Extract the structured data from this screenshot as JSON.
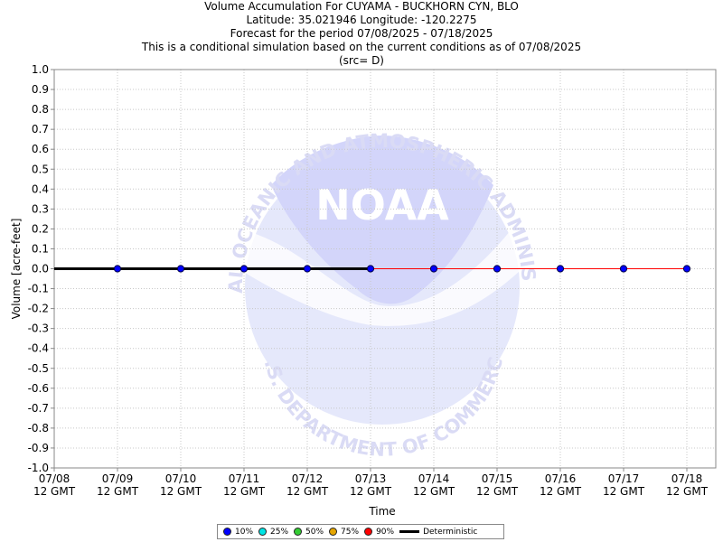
{
  "title_lines": [
    "Volume Accumulation For CUYAMA - BUCKHORN CYN, BLO",
    "Latitude: 35.021946 Longitude: -120.2275",
    "Forecast for the period 07/08/2025 - 07/18/2025",
    "This is a conditional simulation based on the current conditions as of 07/08/2025",
    "(src= D)"
  ],
  "watermark": {
    "logo_text": "NOAA",
    "ring_text_top": "NATIONAL OCEANIC AND ATMOSPHERIC ADMINISTRATION",
    "ring_text_bottom": "U.S. DEPARTMENT OF COMMERCE"
  },
  "chart_data": {
    "type": "line",
    "xlabel": "Time",
    "ylabel": "Volume [acre-feet]",
    "ylim": [
      -1.0,
      1.0
    ],
    "yticks": [
      "1.0",
      "0.9",
      "0.8",
      "0.7",
      "0.6",
      "0.5",
      "0.4",
      "0.3",
      "0.2",
      "0.1",
      "0.0",
      "-0.1",
      "-0.2",
      "-0.3",
      "-0.4",
      "-0.5",
      "-0.6",
      "-0.7",
      "-0.8",
      "-0.9",
      "-1.0"
    ],
    "x_ticks": [
      {
        "date": "07/08",
        "time": "12 GMT"
      },
      {
        "date": "07/09",
        "time": "12 GMT"
      },
      {
        "date": "07/10",
        "time": "12 GMT"
      },
      {
        "date": "07/11",
        "time": "12 GMT"
      },
      {
        "date": "07/12",
        "time": "12 GMT"
      },
      {
        "date": "07/13",
        "time": "12 GMT"
      },
      {
        "date": "07/14",
        "time": "12 GMT"
      },
      {
        "date": "07/15",
        "time": "12 GMT"
      },
      {
        "date": "07/16",
        "time": "12 GMT"
      },
      {
        "date": "07/17",
        "time": "12 GMT"
      },
      {
        "date": "07/18",
        "time": "12 GMT"
      }
    ],
    "grid": true,
    "series": [
      {
        "name": "10%",
        "color": "#0000ff",
        "marker": "circle",
        "x": [
          "07/09",
          "07/10",
          "07/11",
          "07/12",
          "07/13",
          "07/14",
          "07/15",
          "07/16",
          "07/17",
          "07/18"
        ],
        "values": [
          0,
          0,
          0,
          0,
          0,
          0,
          0,
          0,
          0,
          0
        ]
      },
      {
        "name": "25%",
        "color": "#00e5e5",
        "marker": "circle",
        "values": []
      },
      {
        "name": "50%",
        "color": "#33cc33",
        "marker": "circle",
        "values": []
      },
      {
        "name": "75%",
        "color": "#e5a500",
        "marker": "circle",
        "values": []
      },
      {
        "name": "90%",
        "color": "#ff0000",
        "marker": "circle",
        "x": [
          "07/13",
          "07/14",
          "07/15",
          "07/16",
          "07/17",
          "07/18"
        ],
        "values": [
          0,
          0,
          0,
          0,
          0,
          0
        ]
      },
      {
        "name": "Deterministic",
        "color": "#000000",
        "marker": "line",
        "x": [
          "07/08",
          "07/09",
          "07/10",
          "07/11",
          "07/12",
          "07/13"
        ],
        "values": [
          0,
          0,
          0,
          0,
          0,
          0
        ]
      }
    ],
    "legend_placement": "bottom-center"
  }
}
